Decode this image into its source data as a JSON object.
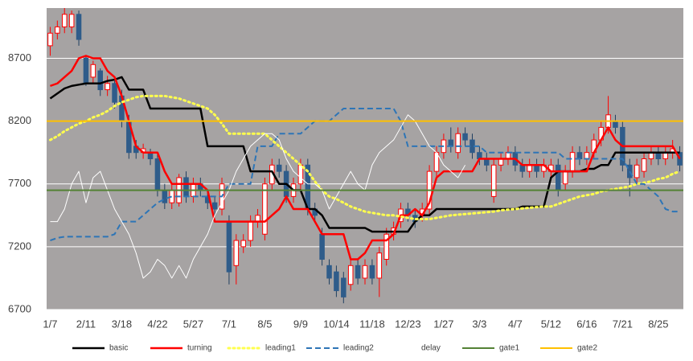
{
  "chart_data": {
    "type": "candlestick",
    "categories": [
      "1/7",
      null,
      null,
      null,
      null,
      "2/11",
      null,
      null,
      null,
      null,
      "3/18",
      null,
      null,
      null,
      null,
      "4/22",
      null,
      null,
      null,
      null,
      "5/27",
      null,
      null,
      null,
      null,
      "7/1",
      null,
      null,
      null,
      null,
      "8/5",
      null,
      null,
      null,
      null,
      "9/9",
      null,
      null,
      null,
      null,
      "10/14",
      null,
      null,
      null,
      null,
      "11/18",
      null,
      null,
      null,
      null,
      "12/23",
      null,
      null,
      null,
      null,
      "1/27",
      null,
      null,
      null,
      null,
      "3/3",
      null,
      null,
      null,
      null,
      "4/7",
      null,
      null,
      null,
      null,
      "5/12",
      null,
      null,
      null,
      null,
      "6/16",
      null,
      null,
      null,
      null,
      "7/21",
      null,
      null,
      null,
      null,
      "8/25",
      null,
      null,
      null
    ],
    "ylim": [
      6700,
      9100
    ],
    "yticks": [
      6700,
      7200,
      7700,
      8200,
      8700
    ],
    "grid": true,
    "candles": {
      "up_color": "#ffffff",
      "up_border": "#ff0000",
      "down_color": "#2f5c8a",
      "open": [
        8800,
        8900,
        8950,
        8950,
        9050,
        8700,
        8550,
        8600,
        8450,
        8500,
        8400,
        8200,
        8000,
        7950,
        7950,
        7900,
        7650,
        7550,
        7550,
        7750,
        7600,
        7700,
        7600,
        7550,
        7500,
        7400,
        7050,
        7200,
        7250,
        7400,
        7300,
        7700,
        7850,
        7800,
        7600,
        7700,
        7850,
        7500,
        7300,
        7050,
        7000,
        6950,
        6900,
        7050,
        6950,
        7050,
        6950,
        7100,
        7300,
        7400,
        7500,
        7450,
        7450,
        7500,
        7800,
        7950,
        8050,
        7950,
        8100,
        8050,
        7950,
        7900,
        7600,
        7850,
        7900,
        7950,
        7850,
        7800,
        7850,
        7800,
        7800,
        7850,
        7700,
        7800,
        7950,
        7900,
        7950,
        8050,
        8150,
        8200,
        8150,
        7850,
        7750,
        7800,
        7900,
        7950,
        7900,
        7950,
        7950
      ],
      "high": [
        8950,
        9000,
        9100,
        9080,
        9080,
        8720,
        8680,
        8620,
        8560,
        8520,
        8450,
        8250,
        8050,
        8020,
        7980,
        7950,
        7700,
        7700,
        7780,
        7800,
        7750,
        7750,
        7650,
        7600,
        7750,
        7450,
        7300,
        7300,
        7450,
        7500,
        7750,
        7900,
        7900,
        7850,
        7750,
        7900,
        7900,
        7550,
        7350,
        7100,
        7050,
        7000,
        7100,
        7100,
        7100,
        7100,
        7200,
        7350,
        7400,
        7550,
        7550,
        7500,
        7550,
        7850,
        8000,
        8100,
        8150,
        8150,
        8150,
        8100,
        8000,
        7950,
        7900,
        7950,
        8000,
        8000,
        7900,
        7900,
        7900,
        7900,
        7900,
        7900,
        7850,
        8000,
        8000,
        8000,
        8100,
        8200,
        8400,
        8250,
        8200,
        7900,
        7900,
        7950,
        8000,
        8000,
        8000,
        8050,
        8000
      ],
      "low": [
        8720,
        8850,
        8900,
        8900,
        8800,
        8480,
        8500,
        8400,
        8400,
        8300,
        8150,
        7900,
        7900,
        7900,
        7850,
        7600,
        7500,
        7500,
        7520,
        7550,
        7550,
        7600,
        7500,
        7450,
        7450,
        6900,
        6900,
        7150,
        7200,
        7350,
        7250,
        7650,
        7750,
        7550,
        7550,
        7650,
        7450,
        7400,
        7050,
        6900,
        6800,
        6750,
        6850,
        6900,
        6900,
        6900,
        6800,
        7050,
        7250,
        7350,
        7400,
        7350,
        7400,
        7450,
        7750,
        7900,
        7950,
        7900,
        8000,
        7900,
        7850,
        7800,
        7550,
        7800,
        7850,
        7800,
        7750,
        7750,
        7750,
        7750,
        7750,
        7600,
        7650,
        7750,
        7850,
        7850,
        7900,
        8000,
        8100,
        8100,
        7800,
        7600,
        7700,
        7750,
        7850,
        7850,
        7850,
        7900,
        7800
      ],
      "close": [
        8900,
        8950,
        9050,
        9050,
        8850,
        8500,
        8650,
        8450,
        8500,
        8350,
        8200,
        7950,
        7950,
        7980,
        7900,
        7650,
        7550,
        7650,
        7750,
        7600,
        7700,
        7650,
        7550,
        7500,
        7700,
        7000,
        7250,
        7250,
        7400,
        7450,
        7700,
        7850,
        7800,
        7600,
        7700,
        7850,
        7500,
        7450,
        7100,
        6950,
        6850,
        6800,
        7050,
        6950,
        7050,
        6950,
        7150,
        7300,
        7350,
        7500,
        7450,
        7400,
        7500,
        7800,
        7950,
        8050,
        8000,
        8100,
        8050,
        7950,
        7900,
        7850,
        7850,
        7900,
        7950,
        7850,
        7800,
        7850,
        7800,
        7850,
        7850,
        7650,
        7800,
        7950,
        7900,
        7950,
        8050,
        8150,
        8250,
        8150,
        7850,
        7750,
        7850,
        7900,
        7950,
        7900,
        7950,
        7980,
        7850
      ]
    },
    "series": [
      {
        "name": "basic",
        "color": "#000000",
        "style": "solid",
        "values": [
          8380,
          8420,
          8460,
          8480,
          8490,
          8500,
          8500,
          8500,
          8520,
          8530,
          8550,
          8450,
          8450,
          8450,
          8300,
          8300,
          8300,
          8300,
          8300,
          8300,
          8300,
          8300,
          8000,
          8000,
          8000,
          8000,
          8000,
          8000,
          7800,
          7800,
          7800,
          7800,
          7700,
          7700,
          7650,
          7650,
          7500,
          7500,
          7450,
          7350,
          7350,
          7350,
          7350,
          7350,
          7350,
          7320,
          7320,
          7320,
          7320,
          7320,
          7320,
          7400,
          7450,
          7450,
          7500,
          7500,
          7500,
          7500,
          7500,
          7500,
          7500,
          7500,
          7500,
          7500,
          7500,
          7500,
          7520,
          7520,
          7520,
          7520,
          7750,
          7800,
          7800,
          7800,
          7800,
          7820,
          7820,
          7850,
          7850,
          7950,
          7950,
          7950,
          7950,
          7950,
          7950,
          7950,
          7950,
          7950,
          7950
        ]
      },
      {
        "name": "turning",
        "color": "#ff0000",
        "style": "solid",
        "values": [
          8480,
          8500,
          8550,
          8600,
          8700,
          8720,
          8700,
          8700,
          8600,
          8550,
          8400,
          8200,
          8000,
          7950,
          7950,
          7950,
          7800,
          7700,
          7700,
          7700,
          7700,
          7700,
          7650,
          7400,
          7400,
          7400,
          7400,
          7400,
          7400,
          7400,
          7400,
          7450,
          7500,
          7600,
          7500,
          7500,
          7500,
          7400,
          7300,
          7300,
          7300,
          7300,
          7100,
          7100,
          7150,
          7250,
          7250,
          7250,
          7300,
          7450,
          7450,
          7500,
          7450,
          7550,
          7750,
          7800,
          7800,
          7800,
          7800,
          7800,
          7900,
          7900,
          7900,
          7900,
          7900,
          7900,
          7850,
          7850,
          7850,
          7850,
          7800,
          7800,
          7800,
          7800,
          7800,
          7800,
          7950,
          8050,
          8150,
          8050,
          8000,
          8000,
          8000,
          8000,
          8000,
          8000,
          8000,
          8000,
          7900
        ]
      },
      {
        "name": "leading1",
        "color": "#ffff4d",
        "style": "dotted",
        "values": [
          8050,
          8080,
          8120,
          8150,
          8180,
          8200,
          8230,
          8250,
          8280,
          8320,
          8350,
          8370,
          8390,
          8400,
          8400,
          8400,
          8400,
          8390,
          8380,
          8360,
          8340,
          8320,
          8300,
          8250,
          8180,
          8100,
          8100,
          8100,
          8100,
          8100,
          8100,
          8050,
          8000,
          7950,
          7900,
          7850,
          7800,
          7720,
          7650,
          7600,
          7580,
          7550,
          7520,
          7500,
          7480,
          7470,
          7460,
          7450,
          7450,
          7440,
          7430,
          7420,
          7420,
          7420,
          7430,
          7440,
          7450,
          7455,
          7460,
          7465,
          7470,
          7475,
          7480,
          7490,
          7495,
          7500,
          7505,
          7510,
          7515,
          7520,
          7520,
          7540,
          7560,
          7580,
          7600,
          7610,
          7620,
          7640,
          7650,
          7660,
          7670,
          7680,
          7700,
          7710,
          7720,
          7740,
          7750,
          7780,
          7800
        ]
      },
      {
        "name": "leading2",
        "color": "#2e75b6",
        "style": "dashed",
        "values": [
          7250,
          7270,
          7280,
          7280,
          7280,
          7280,
          7280,
          7280,
          7280,
          7300,
          7400,
          7400,
          7400,
          7450,
          7500,
          7550,
          7580,
          7600,
          7600,
          7600,
          7600,
          7600,
          7600,
          7600,
          7600,
          7700,
          7700,
          7700,
          7700,
          8000,
          8000,
          8000,
          8100,
          8100,
          8100,
          8100,
          8150,
          8200,
          8200,
          8200,
          8250,
          8300,
          8300,
          8300,
          8300,
          8300,
          8300,
          8300,
          8300,
          8200,
          8000,
          8000,
          8000,
          8000,
          8000,
          8000,
          8000,
          8000,
          8000,
          8000,
          8000,
          7950,
          7950,
          7950,
          7950,
          7950,
          7950,
          7950,
          7950,
          7950,
          7950,
          7950,
          7900,
          7900,
          7900,
          7900,
          7900,
          7900,
          7900,
          7900,
          7900,
          7800,
          7700,
          7700,
          7650,
          7600,
          7500,
          7480,
          7480
        ]
      },
      {
        "name": "delay",
        "color": "#ffffff",
        "style": "thin",
        "values": [
          7400,
          7400,
          7500,
          7700,
          7800,
          7550,
          7750,
          7800,
          7650,
          7500,
          7400,
          7300,
          7150,
          6950,
          7000,
          7100,
          7050,
          6950,
          7050,
          6950,
          7100,
          7200,
          7300,
          7450,
          7550,
          7650,
          7800,
          7900,
          8000,
          8050,
          8100,
          8100,
          8050,
          7900,
          7800,
          7750,
          7700,
          7700,
          7650,
          7500,
          7600,
          7700,
          7800,
          7700,
          7650,
          7850,
          7950,
          8000,
          8050,
          8150,
          8250,
          8200,
          8100,
          8000,
          7950,
          7850,
          7800,
          7750,
          7850,
          null,
          null,
          null,
          null,
          null,
          null,
          null,
          null,
          null,
          null,
          null,
          null,
          null,
          null,
          null,
          null,
          null,
          null,
          null,
          null,
          null,
          null,
          null,
          null,
          null,
          null,
          null,
          null,
          null,
          null
        ]
      },
      {
        "name": "gate1",
        "color": "#548235",
        "style": "level",
        "level": 7650
      },
      {
        "name": "gate2",
        "color": "#ffc000",
        "style": "level",
        "level": 8200
      }
    ]
  }
}
